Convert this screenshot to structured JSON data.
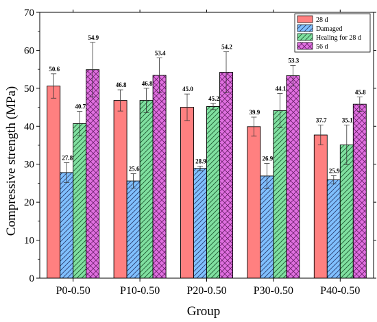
{
  "chart_data": {
    "type": "bar",
    "xlabel": "Group",
    "ylabel": "Compressive strength (MPa)",
    "ylim": [
      0,
      70
    ],
    "yticks": [
      0,
      10,
      20,
      30,
      40,
      50,
      60,
      70
    ],
    "categories": [
      "P0-0.50",
      "P10-0.50",
      "P20-0.50",
      "P30-0.50",
      "P40-0.50"
    ],
    "legend_position": "top-right",
    "grid": false,
    "series": [
      {
        "name": "28 d",
        "color": "#ff8080",
        "pattern": "solid",
        "values": [
          50.6,
          46.8,
          45.0,
          39.9,
          37.7
        ],
        "value_labels": [
          "50.6",
          "46.8",
          "45.0",
          "39.9",
          "37.7"
        ],
        "errors": [
          3.2,
          2.8,
          3.5,
          2.5,
          2.6
        ]
      },
      {
        "name": "Damaged",
        "color": "#80c0ff",
        "pattern": "hatch-diagonal",
        "values": [
          27.8,
          25.6,
          28.9,
          26.9,
          25.9
        ],
        "value_labels": [
          "27.8",
          "25.6",
          "28.9",
          "26.9",
          "25.9"
        ],
        "errors": [
          2.6,
          1.9,
          0.6,
          3.3,
          1.1
        ]
      },
      {
        "name": "Healing for 28 d",
        "color": "#80e0a0",
        "pattern": "hatch-diagonal",
        "values": [
          40.7,
          46.8,
          45.2,
          44.1,
          35.1
        ],
        "value_labels": [
          "40.7",
          "46.8",
          "45.2",
          "44.1",
          "35.1"
        ],
        "errors": [
          3.2,
          3.2,
          0.8,
          4.5,
          5.2
        ]
      },
      {
        "name": "56 d",
        "color": "#e070e0",
        "pattern": "crosshatch",
        "values": [
          54.9,
          53.4,
          54.2,
          53.3,
          45.8
        ],
        "value_labels": [
          "54.9",
          "53.4",
          "54.2",
          "53.3",
          "45.8"
        ],
        "errors": [
          7.2,
          4.6,
          5.4,
          2.7,
          1.9
        ]
      }
    ]
  }
}
